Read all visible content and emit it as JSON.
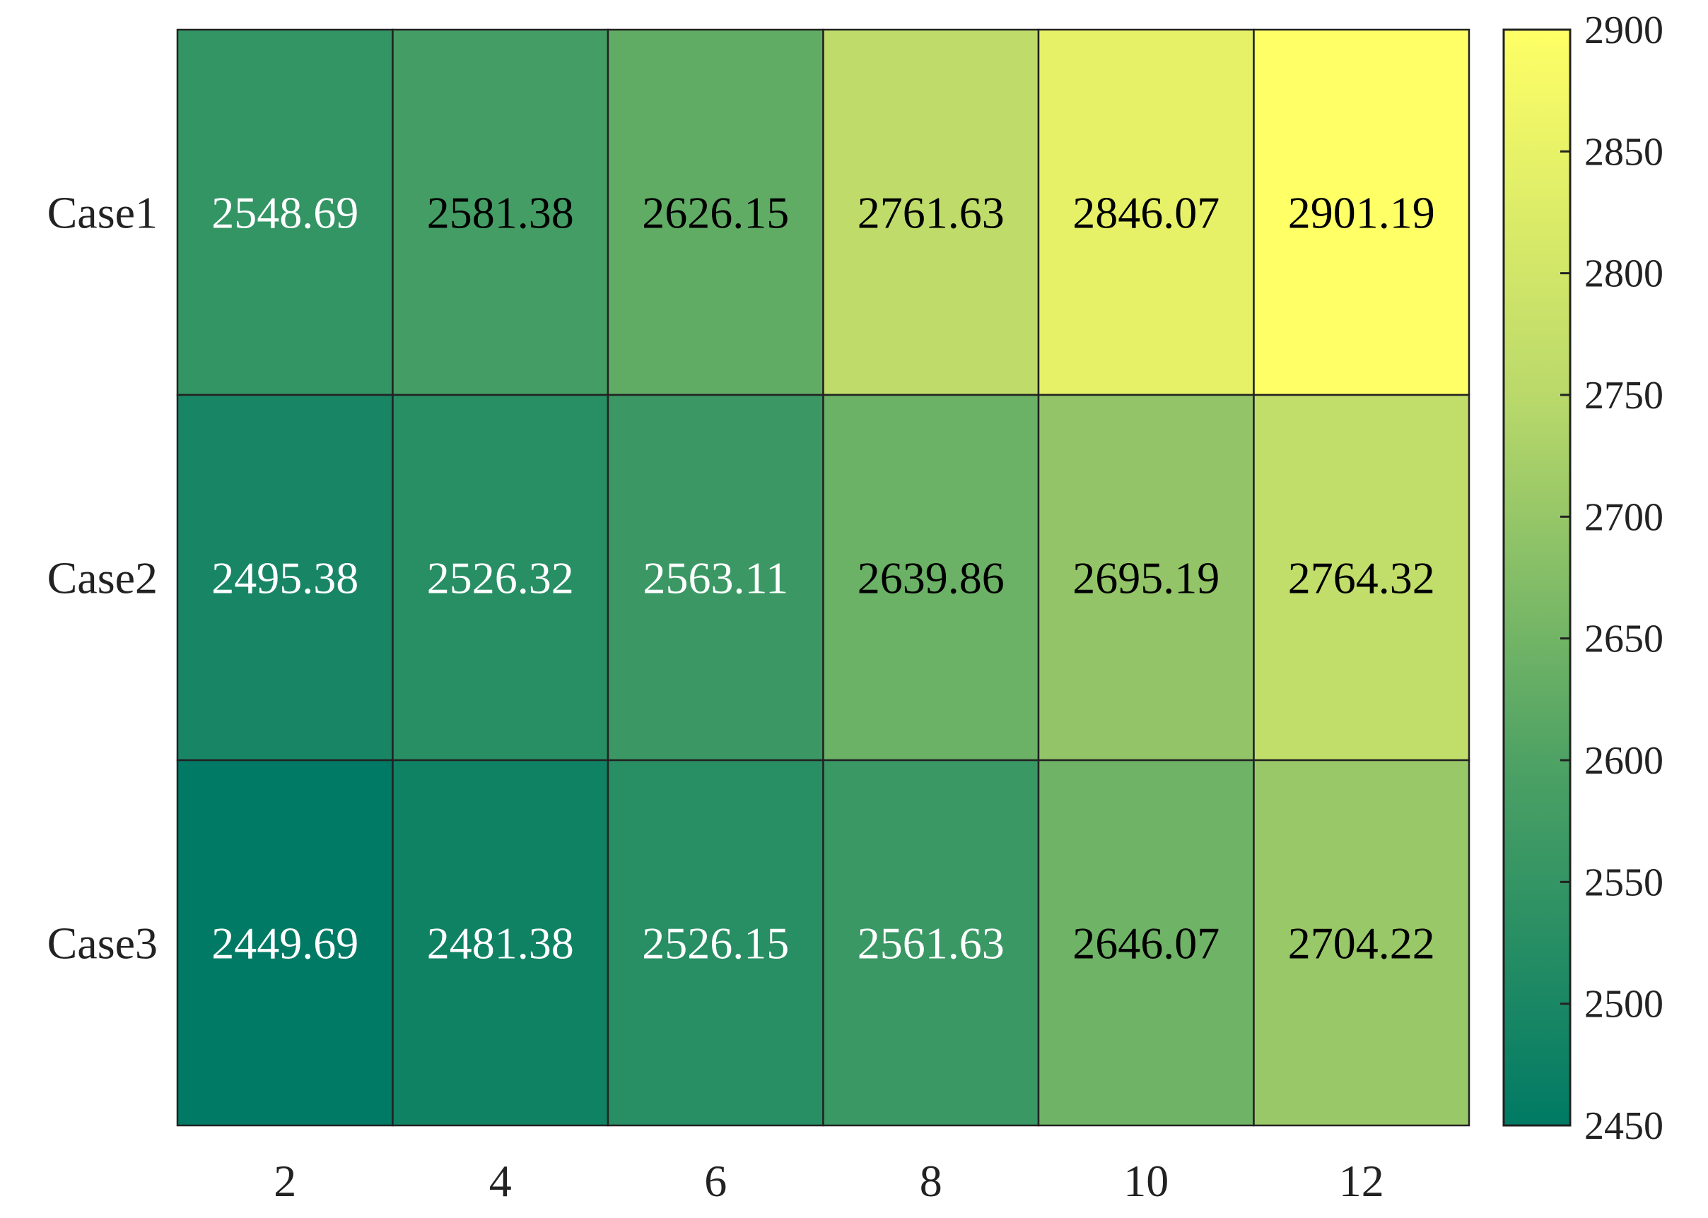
{
  "chart_data": {
    "type": "heatmap",
    "x_categories": [
      "2",
      "4",
      "6",
      "8",
      "10",
      "12"
    ],
    "y_categories": [
      "Case1",
      "Case2",
      "Case3"
    ],
    "values": [
      [
        2548.69,
        2581.38,
        2626.15,
        2761.63,
        2846.07,
        2901.19
      ],
      [
        2495.38,
        2526.32,
        2563.11,
        2639.86,
        2695.19,
        2764.32
      ],
      [
        2449.69,
        2481.38,
        2526.15,
        2561.63,
        2646.07,
        2704.22
      ]
    ],
    "cell_labels": [
      [
        "2548.69",
        "2581.38",
        "2626.15",
        "2761.63",
        "2846.07",
        "2901.19"
      ],
      [
        "2495.38",
        "2526.32",
        "2563.11",
        "2639.86",
        "2695.19",
        "2764.32"
      ],
      [
        "2449.69",
        "2481.38",
        "2526.15",
        "2561.63",
        "2646.07",
        "2704.22"
      ]
    ],
    "colorbar": {
      "range": [
        2450,
        2900
      ],
      "ticks": [
        "2450",
        "2500",
        "2550",
        "2600",
        "2650",
        "2700",
        "2750",
        "2800",
        "2850",
        "2900"
      ],
      "colormap": [
        "#007a64",
        "#4ea264",
        "#bad96a",
        "#ffff66"
      ]
    },
    "title": "",
    "xlabel": "",
    "ylabel": "",
    "grid": false,
    "legend": "colorbar-right",
    "label_colors": {
      "light": "#ffffff",
      "dark": "#000000"
    }
  }
}
